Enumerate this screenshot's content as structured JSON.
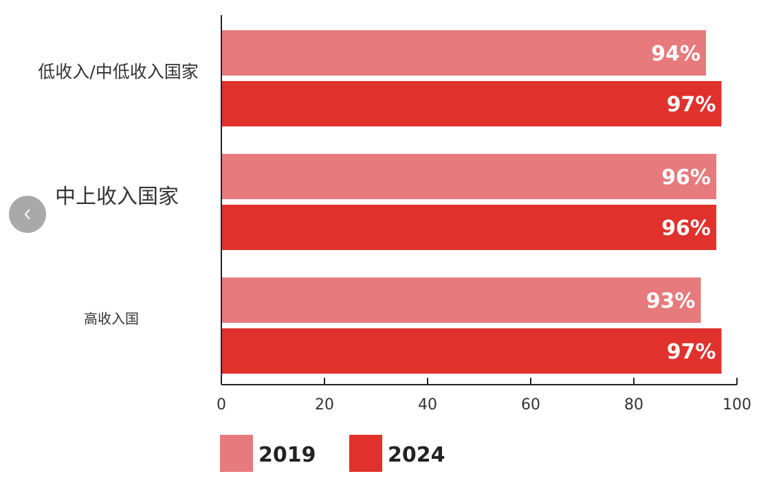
{
  "nav": {
    "prev_icon": "chevron-left-icon"
  },
  "colors": {
    "series_2019": "#e67a7d",
    "series_2024": "#e0312d",
    "axis": "#222222"
  },
  "chart_data": {
    "type": "bar",
    "orientation": "horizontal",
    "categories": [
      "低收入/中低收入国家",
      "中上收入国家",
      "高收入国"
    ],
    "series": [
      {
        "name": "2019",
        "values": [
          94,
          96,
          93
        ],
        "labels": [
          "94%",
          "96%",
          "93%"
        ]
      },
      {
        "name": "2024",
        "values": [
          97,
          96,
          97
        ],
        "labels": [
          "97%",
          "96%",
          "97%"
        ]
      }
    ],
    "xlim": [
      0,
      100
    ],
    "xticks": [
      0,
      20,
      40,
      60,
      80,
      100
    ],
    "grid": false,
    "legend": "bottom"
  }
}
